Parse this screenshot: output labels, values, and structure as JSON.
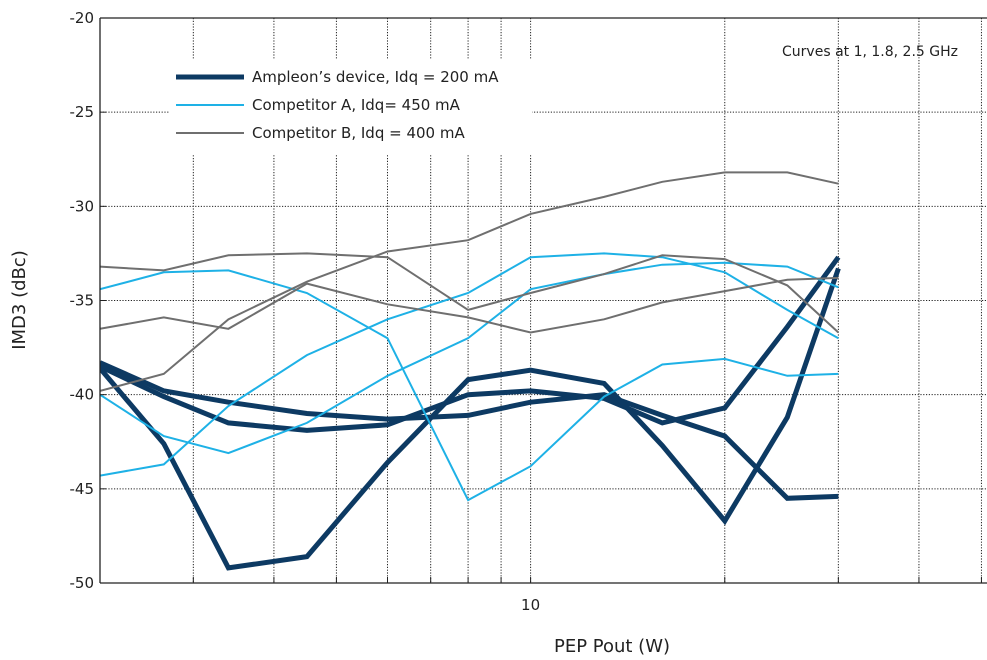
{
  "chart_data": {
    "type": "line",
    "title": "",
    "xlabel": "PEP Pout (W)",
    "ylabel": "IMD3 (dBc)",
    "x_scale": "log",
    "xlim": [
      2.15,
      51
    ],
    "ylim": [
      -50,
      -20
    ],
    "y_ticks": [
      -20,
      -25,
      -30,
      -35,
      -40,
      -45,
      -50
    ],
    "x_tick_labels": [
      {
        "value": 10,
        "label": "10"
      }
    ],
    "x_gridlines": [
      3,
      4,
      5,
      6,
      7,
      8,
      9,
      10,
      20,
      30,
      40,
      50
    ],
    "grid": true,
    "note": "Curves at 1, 1.8, 2.5 GHz",
    "legend": {
      "placement": "top-left",
      "entries": [
        {
          "label": "Ampleon’s device, Idq = 200 mA",
          "color": "#0d3a63",
          "width": 5
        },
        {
          "label": "Competitor A, Idq= 450 mA",
          "color": "#1eb1e6",
          "width": 2
        },
        {
          "label": "Competitor B, Idq = 400 mA",
          "color": "#6f6f6f",
          "width": 2
        }
      ]
    },
    "series": [
      {
        "group": 0,
        "color": "#0d3a63",
        "width": 5,
        "x": [
          2.15,
          2.7,
          3.4,
          4.5,
          6,
          8,
          10,
          13,
          16,
          20,
          25,
          30
        ],
        "y": [
          -38.3,
          -39.8,
          -40.4,
          -41.0,
          -41.3,
          -41.1,
          -40.4,
          -40.0,
          -41.1,
          -42.2,
          -45.5,
          -45.4
        ]
      },
      {
        "group": 0,
        "color": "#0d3a63",
        "width": 5,
        "x": [
          2.15,
          2.7,
          3.4,
          4.5,
          6,
          8,
          10,
          13,
          16,
          20,
          25,
          30
        ],
        "y": [
          -38.5,
          -40.1,
          -41.5,
          -41.9,
          -41.6,
          -40.0,
          -39.8,
          -40.2,
          -41.5,
          -40.7,
          -36.4,
          -32.7
        ]
      },
      {
        "group": 0,
        "color": "#0d3a63",
        "width": 5,
        "x": [
          2.15,
          2.7,
          3.4,
          4.5,
          6,
          8,
          10,
          13,
          16,
          20,
          25,
          30
        ],
        "y": [
          -38.6,
          -42.6,
          -49.2,
          -48.6,
          -43.6,
          -39.2,
          -38.7,
          -39.4,
          -42.7,
          -46.7,
          -41.2,
          -33.3
        ]
      },
      {
        "group": 1,
        "color": "#1eb1e6",
        "width": 2,
        "x": [
          2.15,
          2.7,
          3.4,
          4.5,
          6,
          8,
          10,
          13,
          16,
          20,
          25,
          30
        ],
        "y": [
          -34.4,
          -33.5,
          -33.4,
          -34.6,
          -37.0,
          -45.6,
          -43.8,
          -40.1,
          -38.4,
          -38.1,
          -39.0,
          -38.9
        ]
      },
      {
        "group": 1,
        "color": "#1eb1e6",
        "width": 2,
        "x": [
          2.15,
          2.7,
          3.4,
          4.5,
          6,
          8,
          10,
          13,
          16,
          20,
          25,
          30
        ],
        "y": [
          -40.0,
          -42.2,
          -43.1,
          -41.5,
          -39.0,
          -37.0,
          -34.4,
          -33.6,
          -33.1,
          -33.0,
          -33.2,
          -34.3
        ]
      },
      {
        "group": 1,
        "color": "#1eb1e6",
        "width": 2,
        "x": [
          2.15,
          2.7,
          3.4,
          4.5,
          6,
          8,
          10,
          13,
          16,
          20,
          25,
          30
        ],
        "y": [
          -44.3,
          -43.7,
          -40.6,
          -37.9,
          -36.0,
          -34.6,
          -32.7,
          -32.5,
          -32.7,
          -33.5,
          -35.5,
          -37.0
        ]
      },
      {
        "group": 2,
        "color": "#6f6f6f",
        "width": 2,
        "x": [
          2.15,
          2.7,
          3.4,
          4.5,
          6,
          8,
          10,
          13,
          16,
          20,
          25,
          30
        ],
        "y": [
          -33.2,
          -33.4,
          -32.6,
          -32.5,
          -32.7,
          -35.5,
          -34.6,
          -33.6,
          -32.6,
          -32.8,
          -34.2,
          -36.7
        ]
      },
      {
        "group": 2,
        "color": "#6f6f6f",
        "width": 2,
        "x": [
          2.15,
          2.7,
          3.4,
          4.5,
          6,
          8,
          10,
          13,
          16,
          20,
          25,
          30
        ],
        "y": [
          -36.5,
          -35.9,
          -36.5,
          -34.1,
          -35.2,
          -35.9,
          -36.7,
          -36.0,
          -35.1,
          -34.5,
          -33.9,
          -33.8
        ]
      },
      {
        "group": 2,
        "color": "#6f6f6f",
        "width": 2,
        "x": [
          2.15,
          2.7,
          3.4,
          4.5,
          6,
          8,
          10,
          13,
          16,
          20,
          25,
          30
        ],
        "y": [
          -39.8,
          -38.9,
          -36.0,
          -34.0,
          -32.4,
          -31.8,
          -30.4,
          -29.5,
          -28.7,
          -28.2,
          -28.2,
          -28.8
        ]
      }
    ]
  }
}
